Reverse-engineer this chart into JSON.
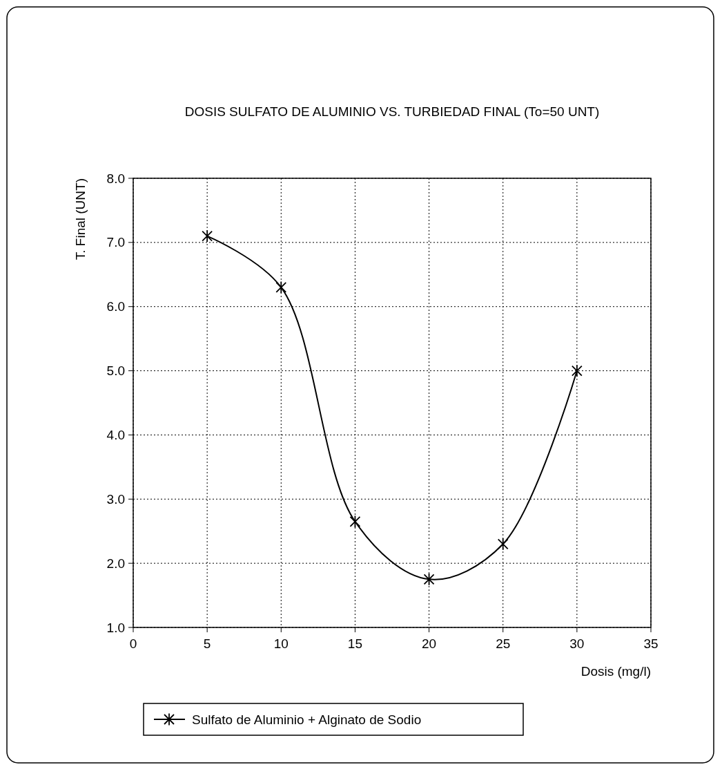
{
  "chart_data": {
    "type": "line",
    "title": "DOSIS SULFATO DE ALUMINIO VS. TURBIEDAD FINAL (To=50 UNT)",
    "xlabel": "Dosis (mg/l)",
    "ylabel": "T. Final (UNT)",
    "x": [
      5,
      10,
      15,
      20,
      25,
      30
    ],
    "series": [
      {
        "name": "Sulfato de Aluminio + Alginato de Sodio",
        "color": "#000000",
        "values": [
          7.1,
          6.3,
          2.65,
          1.75,
          2.3,
          5.0
        ]
      }
    ],
    "xlim": [
      0,
      35
    ],
    "xticks": [
      0,
      5,
      10,
      15,
      20,
      25,
      30,
      35
    ],
    "ylim": [
      1,
      8
    ],
    "yticks": [
      {
        "value": 1,
        "label": "1.0"
      },
      {
        "value": 2,
        "label": "2.0"
      },
      {
        "value": 3,
        "label": "3.0"
      },
      {
        "value": 4,
        "label": "4.0"
      },
      {
        "value": 5,
        "label": "5.0"
      },
      {
        "value": 6,
        "label": "6.0"
      },
      {
        "value": 7,
        "label": "7.0"
      },
      {
        "value": 8,
        "label": "8.0"
      }
    ],
    "grid": true,
    "legend": "bottom",
    "marker": "cross",
    "line_style": "solid"
  }
}
